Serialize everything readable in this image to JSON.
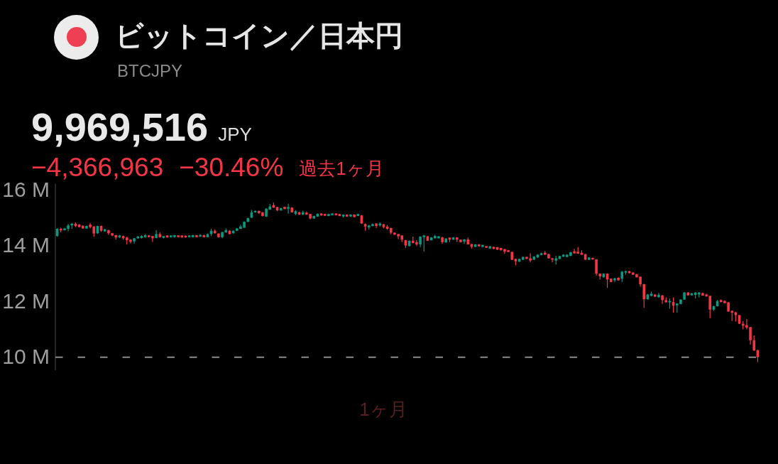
{
  "chart_data": {
    "type": "candlestick",
    "title": "ビットコイン／日本円",
    "subtitle": "BTCJPY",
    "annotations": [
      "9,969,516",
      "JPY",
      "−4,366,963",
      "−30.46%",
      "過去1ヶ月",
      "1ヶ月"
    ],
    "categories": [
      null,
      null,
      null,
      null,
      null,
      null,
      null,
      null,
      null,
      null,
      null,
      null,
      null,
      null,
      null,
      null,
      null,
      null,
      null,
      null,
      null,
      null,
      null,
      null,
      null,
      null,
      null,
      null,
      null,
      null,
      null,
      null,
      null,
      null,
      null,
      null,
      null,
      null,
      null,
      null,
      null,
      null,
      null,
      null,
      null,
      null,
      null,
      null,
      null,
      null,
      null,
      null,
      null,
      null,
      null,
      null,
      null,
      null,
      null,
      null,
      null,
      null,
      null,
      null,
      null,
      null,
      null,
      null,
      null,
      null,
      null,
      null,
      null,
      null,
      null,
      null,
      null,
      null,
      null,
      null,
      null,
      null,
      null,
      null,
      null,
      null,
      null,
      null,
      null,
      null,
      null,
      null,
      null,
      null,
      null,
      null,
      null,
      null,
      null,
      null,
      null,
      null,
      null,
      null,
      null,
      null,
      null,
      null,
      null,
      null,
      null,
      null,
      null,
      null,
      null,
      null,
      null,
      null,
      null,
      null,
      null,
      null,
      null,
      null,
      null,
      null,
      null,
      null,
      null,
      null,
      null,
      null,
      null,
      null,
      null,
      null,
      null,
      null,
      null,
      null,
      null,
      null,
      null,
      null,
      null,
      null,
      null,
      null,
      null,
      null,
      null,
      null,
      null,
      null,
      null,
      null,
      null,
      null,
      null,
      null,
      null,
      null,
      null,
      null,
      null,
      null,
      null,
      null,
      null,
      null,
      null,
      null,
      null,
      null,
      null,
      null,
      null,
      null,
      null,
      null,
      null,
      null,
      null,
      null,
      null,
      null,
      null,
      null,
      null,
      null,
      null,
      null
    ],
    "ohlc": [
      [
        14.32,
        14.6,
        14.3,
        14.58
      ],
      [
        14.58,
        14.62,
        14.45,
        14.52
      ],
      [
        14.53,
        14.61,
        14.52,
        14.59
      ],
      [
        14.58,
        14.75,
        14.49,
        14.7
      ],
      [
        14.7,
        14.79,
        14.58,
        14.76
      ],
      [
        14.76,
        14.81,
        14.64,
        14.68
      ],
      [
        14.73,
        14.75,
        14.63,
        14.64
      ],
      [
        14.69,
        14.7,
        14.58,
        14.59
      ],
      [
        14.59,
        14.7,
        14.58,
        14.68
      ],
      [
        14.73,
        14.79,
        14.59,
        14.64
      ],
      [
        14.66,
        14.68,
        14.29,
        14.41
      ],
      [
        14.42,
        14.69,
        14.4,
        14.68
      ],
      [
        14.68,
        14.7,
        14.47,
        14.51
      ],
      [
        14.49,
        14.58,
        14.47,
        14.56
      ],
      [
        14.53,
        14.55,
        14.36,
        14.42
      ],
      [
        14.42,
        14.43,
        14.32,
        14.34
      ],
      [
        14.35,
        14.36,
        14.19,
        14.27
      ],
      [
        14.27,
        14.36,
        14.25,
        14.34
      ],
      [
        14.32,
        14.34,
        14.19,
        14.24
      ],
      [
        14.27,
        14.29,
        14.02,
        14.17
      ],
      [
        14.19,
        14.21,
        14.05,
        14.11
      ],
      [
        14.13,
        14.25,
        14.05,
        14.24
      ],
      [
        14.24,
        14.32,
        14.22,
        14.3
      ],
      [
        14.25,
        14.35,
        14.23,
        14.32
      ],
      [
        14.28,
        14.38,
        14.26,
        14.35
      ],
      [
        14.34,
        14.36,
        14.27,
        14.28
      ],
      [
        14.32,
        14.33,
        14.11,
        14.24
      ],
      [
        14.25,
        14.53,
        14.24,
        14.39
      ],
      [
        14.39,
        14.45,
        14.26,
        14.28
      ],
      [
        14.25,
        14.33,
        14.24,
        14.32
      ],
      [
        14.34,
        14.35,
        14.26,
        14.27
      ],
      [
        14.28,
        14.35,
        14.27,
        14.34
      ],
      [
        14.28,
        14.36,
        14.27,
        14.35
      ],
      [
        14.34,
        14.35,
        14.27,
        14.28
      ],
      [
        14.34,
        14.35,
        14.26,
        14.27
      ],
      [
        14.33,
        14.34,
        14.26,
        14.27
      ],
      [
        14.28,
        14.35,
        14.27,
        14.34
      ],
      [
        14.28,
        14.36,
        14.27,
        14.35
      ],
      [
        14.35,
        14.36,
        14.27,
        14.28
      ],
      [
        14.3,
        14.38,
        14.29,
        14.36
      ],
      [
        14.35,
        14.37,
        14.27,
        14.28
      ],
      [
        14.28,
        14.41,
        14.27,
        14.39
      ],
      [
        14.39,
        14.58,
        14.32,
        14.51
      ],
      [
        14.51,
        14.56,
        14.41,
        14.42
      ],
      [
        14.41,
        14.42,
        14.26,
        14.28
      ],
      [
        14.28,
        14.47,
        14.24,
        14.46
      ],
      [
        14.45,
        14.59,
        14.44,
        14.53
      ],
      [
        14.51,
        14.53,
        14.38,
        14.39
      ],
      [
        14.42,
        14.52,
        14.41,
        14.51
      ],
      [
        14.51,
        14.61,
        14.5,
        14.59
      ],
      [
        14.58,
        14.72,
        14.57,
        14.66
      ],
      [
        14.62,
        14.85,
        14.61,
        14.83
      ],
      [
        14.83,
        14.98,
        14.82,
        14.96
      ],
      [
        14.98,
        15.26,
        14.97,
        15.17
      ],
      [
        15.17,
        15.24,
        15.16,
        15.22
      ],
      [
        15.22,
        15.24,
        15.12,
        15.14
      ],
      [
        15.17,
        15.18,
        15.02,
        15.04
      ],
      [
        15.02,
        15.32,
        15.0,
        15.3
      ],
      [
        15.27,
        15.47,
        15.26,
        15.38
      ],
      [
        15.43,
        15.53,
        15.33,
        15.34
      ],
      [
        15.36,
        15.37,
        15.22,
        15.24
      ],
      [
        15.24,
        15.34,
        15.23,
        15.32
      ],
      [
        15.37,
        15.38,
        15.28,
        15.29
      ],
      [
        15.3,
        15.47,
        15.13,
        15.36
      ],
      [
        15.34,
        15.36,
        15.16,
        15.17
      ],
      [
        15.12,
        15.25,
        15.07,
        15.21
      ],
      [
        15.17,
        15.19,
        15.08,
        15.09
      ],
      [
        15.09,
        15.23,
        15.08,
        15.17
      ],
      [
        15.16,
        15.2,
        15.08,
        15.09
      ],
      [
        15.11,
        15.12,
        14.92,
        14.95
      ],
      [
        14.95,
        15.05,
        14.94,
        15.04
      ],
      [
        15.02,
        15.13,
        15.01,
        15.12
      ],
      [
        15.13,
        15.14,
        15.05,
        15.06
      ],
      [
        15.11,
        15.12,
        15.04,
        15.05
      ],
      [
        15.04,
        15.12,
        15.03,
        15.11
      ],
      [
        15.07,
        15.14,
        15.06,
        15.13
      ],
      [
        15.13,
        15.14,
        15.06,
        15.07
      ],
      [
        15.11,
        15.12,
        15.03,
        15.04
      ],
      [
        15.02,
        15.1,
        14.98,
        15.09
      ],
      [
        15.09,
        15.1,
        15.01,
        15.02
      ],
      [
        15.02,
        15.1,
        15.01,
        15.09
      ],
      [
        15.09,
        15.1,
        14.99,
        15.0
      ],
      [
        15.04,
        15.12,
        15.03,
        15.11
      ],
      [
        15.06,
        15.08,
        14.76,
        14.77
      ],
      [
        14.75,
        14.77,
        14.51,
        14.66
      ],
      [
        14.63,
        14.72,
        14.55,
        14.7
      ],
      [
        14.68,
        14.77,
        14.67,
        14.75
      ],
      [
        14.77,
        14.78,
        14.61,
        14.68
      ],
      [
        14.7,
        14.81,
        14.66,
        14.77
      ],
      [
        14.74,
        14.76,
        14.6,
        14.64
      ],
      [
        14.66,
        14.72,
        14.54,
        14.58
      ],
      [
        14.61,
        14.62,
        14.38,
        14.44
      ],
      [
        14.44,
        14.45,
        14.36,
        14.37
      ],
      [
        14.39,
        14.4,
        14.21,
        14.31
      ],
      [
        14.34,
        14.35,
        14.1,
        14.19
      ],
      [
        14.17,
        14.18,
        13.89,
        13.98
      ],
      [
        13.96,
        14.16,
        13.95,
        14.15
      ],
      [
        14.15,
        14.3,
        14.06,
        14.07
      ],
      [
        14.1,
        14.17,
        13.96,
        14.02
      ],
      [
        14.02,
        14.31,
        13.92,
        14.3
      ],
      [
        14.28,
        14.36,
        13.76,
        14.34
      ],
      [
        14.31,
        14.32,
        14.14,
        14.15
      ],
      [
        14.17,
        14.28,
        14.16,
        14.27
      ],
      [
        14.24,
        14.36,
        14.23,
        14.32
      ],
      [
        14.24,
        14.32,
        14.23,
        14.31
      ],
      [
        14.27,
        14.29,
        14.04,
        14.1
      ],
      [
        14.09,
        14.24,
        14.08,
        14.23
      ],
      [
        14.26,
        14.27,
        14.1,
        14.19
      ],
      [
        14.19,
        14.28,
        14.18,
        14.27
      ],
      [
        14.27,
        14.28,
        14.1,
        14.19
      ],
      [
        14.19,
        14.2,
        14.09,
        14.1
      ],
      [
        14.12,
        14.21,
        14.04,
        14.2
      ],
      [
        14.2,
        14.27,
        14.01,
        14.02
      ],
      [
        14.03,
        14.04,
        13.87,
        13.93
      ],
      [
        13.93,
        14.03,
        13.92,
        14.02
      ],
      [
        14.02,
        14.03,
        13.94,
        13.95
      ],
      [
        13.93,
        14.01,
        13.92,
        14.0
      ],
      [
        13.96,
        13.97,
        13.89,
        13.9
      ],
      [
        13.87,
        13.96,
        13.86,
        13.95
      ],
      [
        13.93,
        13.94,
        13.85,
        13.86
      ],
      [
        13.92,
        13.93,
        13.82,
        13.83
      ],
      [
        13.89,
        13.9,
        13.8,
        13.81
      ],
      [
        13.85,
        13.86,
        13.69,
        13.76
      ],
      [
        13.81,
        13.82,
        13.74,
        13.75
      ],
      [
        13.75,
        13.76,
        13.46,
        13.47
      ],
      [
        13.5,
        13.51,
        13.27,
        13.41
      ],
      [
        13.4,
        13.51,
        13.39,
        13.5
      ],
      [
        13.47,
        13.58,
        13.46,
        13.57
      ],
      [
        13.57,
        13.58,
        13.49,
        13.5
      ],
      [
        13.52,
        13.7,
        13.38,
        13.44
      ],
      [
        13.47,
        13.6,
        13.46,
        13.58
      ],
      [
        13.55,
        13.67,
        13.54,
        13.65
      ],
      [
        13.64,
        13.72,
        13.63,
        13.7
      ],
      [
        13.72,
        13.78,
        13.64,
        13.65
      ],
      [
        13.67,
        13.69,
        13.51,
        13.52
      ],
      [
        13.52,
        13.53,
        13.38,
        13.47
      ],
      [
        13.44,
        13.61,
        13.3,
        13.52
      ],
      [
        13.5,
        13.61,
        13.49,
        13.6
      ],
      [
        13.58,
        13.67,
        13.57,
        13.65
      ],
      [
        13.57,
        13.67,
        13.56,
        13.65
      ],
      [
        13.61,
        13.75,
        13.6,
        13.74
      ],
      [
        13.77,
        13.86,
        13.69,
        13.7
      ],
      [
        13.76,
        13.92,
        13.68,
        13.69
      ],
      [
        13.72,
        13.81,
        13.64,
        13.65
      ],
      [
        13.67,
        13.68,
        13.46,
        13.47
      ],
      [
        13.47,
        13.56,
        13.46,
        13.55
      ],
      [
        13.53,
        13.55,
        13.47,
        13.48
      ],
      [
        13.48,
        13.49,
        12.9,
        12.97
      ],
      [
        12.97,
        12.98,
        12.76,
        12.87
      ],
      [
        12.84,
        12.98,
        12.83,
        12.97
      ],
      [
        12.97,
        12.98,
        12.46,
        12.76
      ],
      [
        12.79,
        12.8,
        12.66,
        12.67
      ],
      [
        12.73,
        12.82,
        12.67,
        12.8
      ],
      [
        12.82,
        12.84,
        12.72,
        12.73
      ],
      [
        12.79,
        13.06,
        12.67,
        13.04
      ],
      [
        13.01,
        13.08,
        12.93,
        13.06
      ],
      [
        13.06,
        13.07,
        12.98,
        12.99
      ],
      [
        13.01,
        13.02,
        12.92,
        12.93
      ],
      [
        12.95,
        12.96,
        12.83,
        12.84
      ],
      [
        12.86,
        12.87,
        12.5,
        12.59
      ],
      [
        12.59,
        12.6,
        11.74,
        12.05
      ],
      [
        12.05,
        12.24,
        12.04,
        12.22
      ],
      [
        12.17,
        12.33,
        12.16,
        12.25
      ],
      [
        12.22,
        12.23,
        12.13,
        12.14
      ],
      [
        12.12,
        12.28,
        12.11,
        12.21
      ],
      [
        12.19,
        12.2,
        11.88,
        12.02
      ],
      [
        12.02,
        12.12,
        11.93,
        11.94
      ],
      [
        11.94,
        12.08,
        11.71,
        11.99
      ],
      [
        11.95,
        12.12,
        11.57,
        11.82
      ],
      [
        11.83,
        11.91,
        11.57,
        11.9
      ],
      [
        11.88,
        12.05,
        11.87,
        12.04
      ],
      [
        12.04,
        12.31,
        12.03,
        12.29
      ],
      [
        12.29,
        12.31,
        12.18,
        12.19
      ],
      [
        12.19,
        12.28,
        12.18,
        12.26
      ],
      [
        12.21,
        12.31,
        12.08,
        12.29
      ],
      [
        12.22,
        12.31,
        12.12,
        12.29
      ],
      [
        12.27,
        12.29,
        12.18,
        12.18
      ],
      [
        12.22,
        12.25,
        12.14,
        12.16
      ],
      [
        12.17,
        12.18,
        11.37,
        11.68
      ],
      [
        11.68,
        11.82,
        11.63,
        11.8
      ],
      [
        11.8,
        12.02,
        11.79,
        11.99
      ],
      [
        12.02,
        12.04,
        11.94,
        11.95
      ],
      [
        11.99,
        12.01,
        11.9,
        11.91
      ],
      [
        11.94,
        11.95,
        11.6,
        11.61
      ],
      [
        11.63,
        11.65,
        11.27,
        11.57
      ],
      [
        11.58,
        11.6,
        11.25,
        11.48
      ],
      [
        11.48,
        11.49,
        11.16,
        11.17
      ],
      [
        11.17,
        11.27,
        10.97,
        11.1
      ],
      [
        11.12,
        11.34,
        10.97,
        11.03
      ],
      [
        11.05,
        11.06,
        10.42,
        10.58
      ],
      [
        10.58,
        10.75,
        10.2,
        10.21
      ],
      [
        10.22,
        10.24,
        9.79,
        9.97
      ]
    ],
    "colors": [
      "#089981",
      "#f23645",
      "#089981",
      "#089981",
      "#089981",
      "#f23645",
      "#f23645",
      "#f23645",
      "#089981",
      "#f23645",
      "#f23645",
      "#089981",
      "#f23645",
      "#089981",
      "#f23645",
      "#f23645",
      "#f23645",
      "#089981",
      "#f23645",
      "#f23645",
      "#f23645",
      "#089981",
      "#089981",
      "#089981",
      "#089981",
      "#f23645",
      "#f23645",
      "#089981",
      "#f23645",
      "#089981",
      "#f23645",
      "#089981",
      "#089981",
      "#f23645",
      "#f23645",
      "#f23645",
      "#089981",
      "#089981",
      "#f23645",
      "#089981",
      "#f23645",
      "#089981",
      "#089981",
      "#f23645",
      "#f23645",
      "#089981",
      "#089981",
      "#f23645",
      "#089981",
      "#089981",
      "#089981",
      "#089981",
      "#089981",
      "#089981",
      "#089981",
      "#f23645",
      "#f23645",
      "#089981",
      "#089981",
      "#f23645",
      "#f23645",
      "#089981",
      "#f23645",
      "#089981",
      "#f23645",
      "#089981",
      "#f23645",
      "#089981",
      "#f23645",
      "#f23645",
      "#089981",
      "#089981",
      "#f23645",
      "#f23645",
      "#089981",
      "#089981",
      "#f23645",
      "#f23645",
      "#089981",
      "#f23645",
      "#089981",
      "#f23645",
      "#089981",
      "#f23645",
      "#f23645",
      "#089981",
      "#089981",
      "#f23645",
      "#089981",
      "#f23645",
      "#f23645",
      "#f23645",
      "#f23645",
      "#f23645",
      "#f23645",
      "#f23645",
      "#089981",
      "#f23645",
      "#f23645",
      "#089981",
      "#089981",
      "#f23645",
      "#089981",
      "#089981",
      "#089981",
      "#f23645",
      "#089981",
      "#f23645",
      "#089981",
      "#f23645",
      "#f23645",
      "#089981",
      "#f23645",
      "#f23645",
      "#089981",
      "#f23645",
      "#089981",
      "#f23645",
      "#089981",
      "#f23645",
      "#f23645",
      "#f23645",
      "#f23645",
      "#f23645",
      "#f23645",
      "#f23645",
      "#089981",
      "#089981",
      "#f23645",
      "#f23645",
      "#089981",
      "#089981",
      "#089981",
      "#f23645",
      "#f23645",
      "#f23645",
      "#089981",
      "#089981",
      "#089981",
      "#089981",
      "#089981",
      "#f23645",
      "#f23645",
      "#f23645",
      "#f23645",
      "#089981",
      "#f23645",
      "#f23645",
      "#f23645",
      "#089981",
      "#f23645",
      "#f23645",
      "#089981",
      "#f23645",
      "#089981",
      "#089981",
      "#f23645",
      "#f23645",
      "#f23645",
      "#f23645",
      "#f23645",
      "#089981",
      "#089981",
      "#f23645",
      "#089981",
      "#f23645",
      "#f23645",
      "#089981",
      "#f23645",
      "#089981",
      "#089981",
      "#089981",
      "#f23645",
      "#089981",
      "#089981",
      "#089981",
      "#f23645",
      "#f23645",
      "#f23645",
      "#089981",
      "#089981",
      "#f23645",
      "#f23645",
      "#f23645",
      "#f23645",
      "#f23645",
      "#f23645",
      "#f23645",
      "#f23645",
      "#f23645",
      "#f23645",
      "#f23645"
    ],
    "ylim": [
      9.5,
      16.2
    ],
    "yticks": [
      {
        "value": 16,
        "label": "16 M"
      },
      {
        "value": 14,
        "label": "14 M"
      },
      {
        "value": 12,
        "label": "12 M"
      },
      {
        "value": 10,
        "label": "10 M"
      }
    ],
    "ref_lines": [
      {
        "axis": "y",
        "value": 9.97,
        "line_style": "dashed",
        "color": "#8a8a8a"
      }
    ]
  }
}
